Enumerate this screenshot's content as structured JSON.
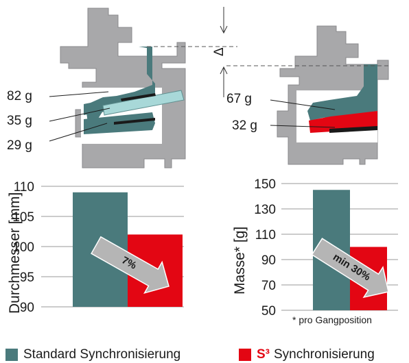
{
  "colors": {
    "standard": "#4a7a7c",
    "s3": "#e30613",
    "housing": "#a8a8aa",
    "housing_dark": "#8e8e90",
    "arrow": "#b5b5b5",
    "sleeve": "#a8d8d8",
    "grid": "#9a9a9a"
  },
  "diagram": {
    "left_labels": [
      "82 g",
      "35 g",
      "29 g"
    ],
    "right_labels": [
      "67 g",
      "32 g"
    ],
    "delta": "Δ"
  },
  "chart_data": [
    {
      "type": "bar",
      "categories": [
        "Standard Synchronisierung",
        "S³ Synchronisierung"
      ],
      "values": [
        109,
        102
      ],
      "ylabel": "Durchmesser [mm]",
      "ylim": [
        90,
        110
      ],
      "yticks": [
        110,
        105,
        100,
        95,
        90
      ],
      "annotation": "7%",
      "grid": true
    },
    {
      "type": "bar",
      "categories": [
        "Standard Synchronisierung",
        "S³ Synchronisierung"
      ],
      "values": [
        145,
        100
      ],
      "ylabel": "Masse* [g]",
      "ylim": [
        50,
        150
      ],
      "yticks": [
        150,
        130,
        110,
        90,
        70,
        50
      ],
      "annotation": "min 30%",
      "grid": true,
      "footnote": "* pro Gangposition"
    }
  ],
  "legend": {
    "standard_label": "Standard Synchronisierung",
    "s3_logo": "S³",
    "s3_label": "Synchronisierung"
  }
}
